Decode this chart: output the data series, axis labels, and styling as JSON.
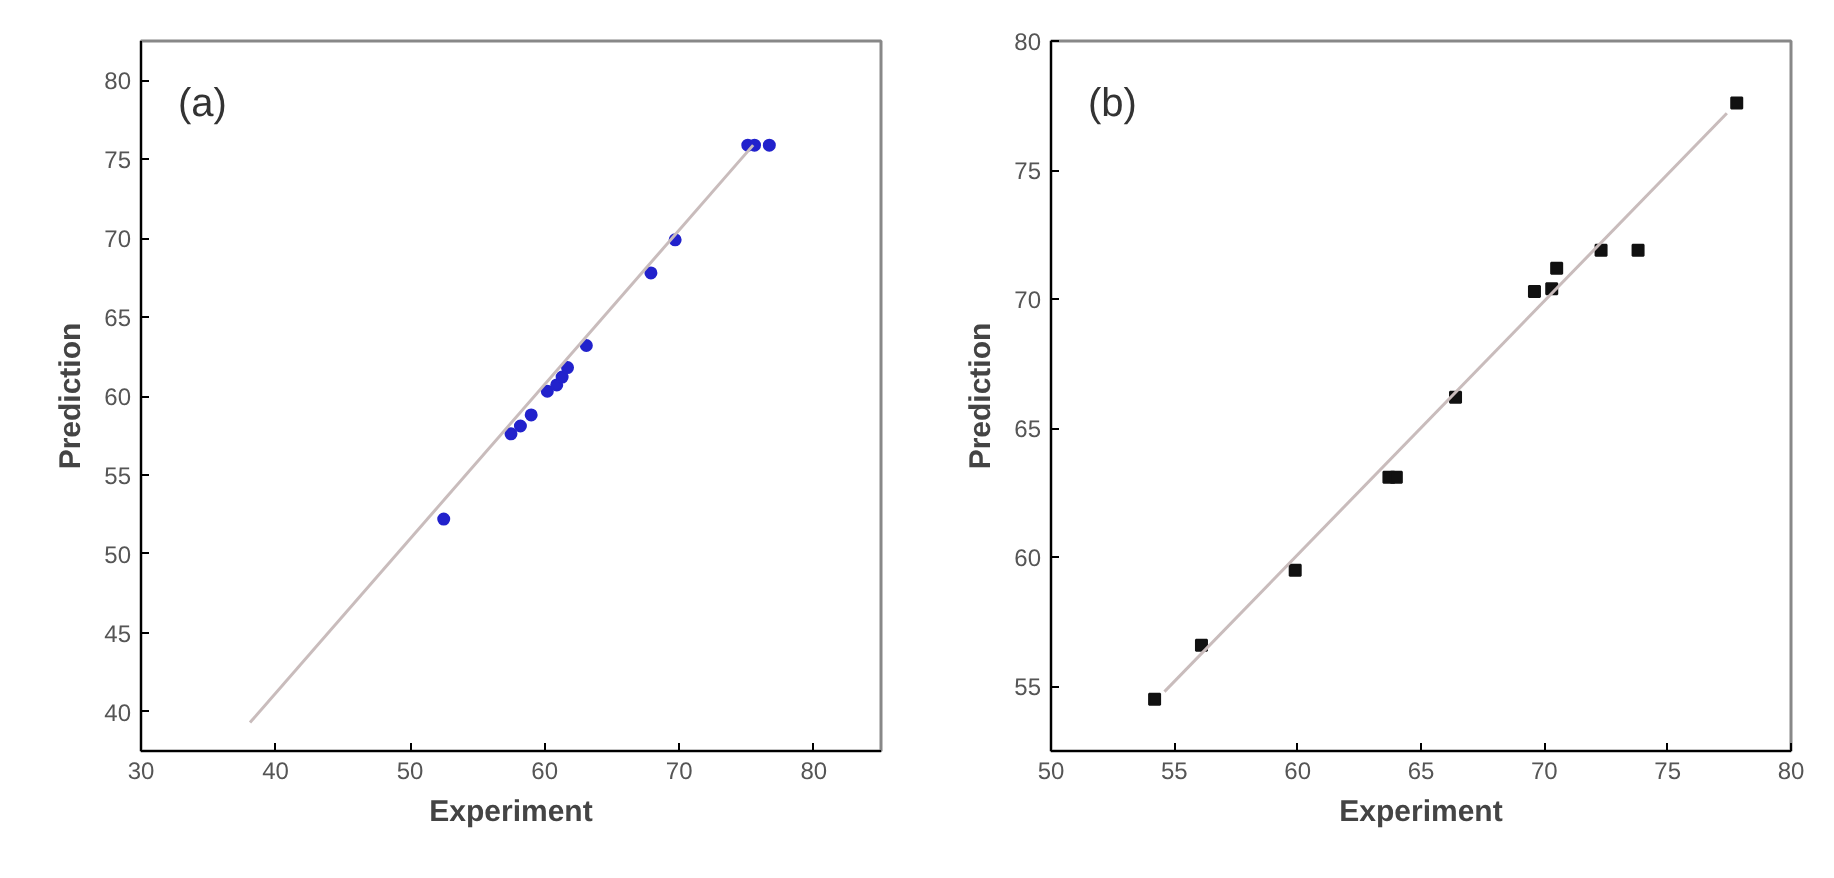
{
  "chart_data": [
    {
      "type": "scatter",
      "xlabel": "Experiment",
      "ylabel": "Prediction",
      "annotations": [
        "(a)"
      ],
      "grid": false,
      "xlim": [
        30,
        85
      ],
      "ylim": [
        37.5,
        82.5
      ],
      "xticks": [
        30,
        40,
        50,
        60,
        70,
        80
      ],
      "yticks": [
        40,
        45,
        50,
        55,
        60,
        65,
        70,
        75,
        80
      ],
      "series": [
        {
          "marker": "circle",
          "color": "#2222cc",
          "x": [
            52.5,
            57.5,
            58.2,
            59.0,
            60.2,
            60.9,
            61.3,
            61.7,
            63.1,
            67.9,
            69.7,
            75.1,
            75.6,
            76.7
          ],
          "values": [
            52.2,
            57.6,
            58.1,
            58.8,
            60.3,
            60.7,
            61.2,
            61.8,
            63.2,
            67.8,
            69.9,
            75.9,
            75.9,
            75.9
          ]
        },
        {
          "type": "line",
          "color": "#c9bcbc",
          "x": [
            38.1,
            75.5
          ],
          "values": [
            39.3,
            75.9
          ]
        }
      ]
    },
    {
      "type": "scatter",
      "xlabel": "Experiment",
      "ylabel": "Prediction",
      "annotations": [
        "(b)"
      ],
      "grid": false,
      "xlim": [
        50,
        80
      ],
      "ylim": [
        52.5,
        80
      ],
      "xticks": [
        50,
        55,
        60,
        65,
        70,
        75,
        80
      ],
      "yticks": [
        55,
        60,
        65,
        70,
        75,
        80
      ],
      "series": [
        {
          "marker": "square",
          "color": "#111111",
          "x": [
            54.2,
            56.1,
            59.9,
            63.7,
            64.0,
            66.4,
            69.6,
            70.3,
            70.5,
            72.3,
            73.8,
            77.8
          ],
          "values": [
            54.5,
            56.6,
            59.5,
            63.1,
            63.1,
            66.2,
            70.3,
            70.4,
            71.2,
            71.9,
            71.9,
            77.6
          ]
        },
        {
          "type": "line",
          "color": "#c9bcbc",
          "x": [
            54.6,
            77.4
          ],
          "values": [
            54.8,
            77.2
          ]
        }
      ]
    }
  ]
}
